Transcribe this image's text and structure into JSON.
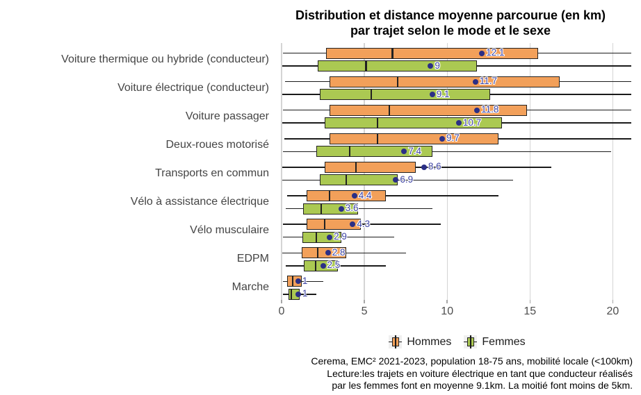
{
  "title": {
    "line1": "Distribution et distance moyenne parcourue (en km)",
    "line2": "par trajet selon le mode et le sexe"
  },
  "legend": {
    "items": [
      {
        "label": "Hommes",
        "color": "#f2a05a"
      },
      {
        "label": "Femmes",
        "color": "#abc952"
      }
    ]
  },
  "caption": {
    "line1": "Cerema, EMC² 2021-2023, population 18-75 ans, mobilité locale (<100km)",
    "line2": "Lecture:les trajets en voiture électrique en tant que conducteur réalisés",
    "line3": "par les femmes font en moyenne 9.1km. La moitié font moins de 5km."
  },
  "colors": {
    "hommes_fill": "#f2a05a",
    "femmes_fill": "#abc952",
    "box_border": "#222222",
    "whisker": "#1a1a1a",
    "mean_dot": "#2b2f86",
    "mean_label": "#3d43a2",
    "gridline": "#d4d4d4",
    "axis_text": "#4d4d4d"
  },
  "chart_data": {
    "type": "boxplot",
    "orientation": "horizontal",
    "title": "Distribution et distance moyenne parcourue (en km) par trajet selon le mode et le sexe",
    "xlabel": "",
    "ylabel": "",
    "xlim": [
      0,
      21.2
    ],
    "x_ticks": [
      0,
      5,
      10,
      15,
      20
    ],
    "x_tick_labels": [
      "0",
      "5",
      "10",
      "15",
      "20"
    ],
    "grid": "vertical-major-only",
    "legend_position": "bottom",
    "categories": [
      "Voiture thermique ou hybride (conducteur)",
      "Voiture électrique (conducteur)",
      "Voiture passager",
      "Deux-roues motorisé",
      "Transports en commun",
      "Vélo à assistance électrique",
      "Vélo musculaire",
      "EDPM",
      "Marche"
    ],
    "series": [
      {
        "name": "Hommes",
        "color": "#f2a05a",
        "stats_keys": [
          "min",
          "q1",
          "median",
          "q3",
          "max",
          "mean"
        ],
        "stats": [
          [
            0.1,
            2.7,
            6.7,
            15.5,
            21.1,
            12.1
          ],
          [
            0.2,
            2.9,
            7.0,
            16.8,
            21.1,
            11.7
          ],
          [
            0.1,
            2.9,
            6.5,
            14.8,
            21.1,
            11.8
          ],
          [
            0.15,
            2.9,
            5.8,
            13.1,
            21.1,
            9.7
          ],
          [
            0.05,
            2.6,
            4.5,
            8.1,
            16.3,
            8.6
          ],
          [
            0.35,
            1.5,
            2.9,
            6.3,
            13.1,
            4.4
          ],
          [
            0.1,
            1.5,
            2.6,
            4.8,
            9.6,
            4.3
          ],
          [
            0.05,
            1.2,
            2.2,
            3.9,
            7.5,
            2.8
          ],
          [
            0.1,
            0.35,
            0.67,
            1.2,
            2.5,
            1.0
          ]
        ],
        "mean_labels": [
          "12.1",
          "11.7",
          "11.8",
          "9.7",
          "8.6",
          "4.4",
          "4.3",
          "2.8",
          "1"
        ]
      },
      {
        "name": "Femmes",
        "color": "#abc952",
        "stats_keys": [
          "min",
          "q1",
          "median",
          "q3",
          "max",
          "mean"
        ],
        "stats": [
          [
            0.05,
            2.2,
            5.1,
            11.8,
            21.1,
            9.0
          ],
          [
            0.05,
            2.3,
            5.4,
            12.6,
            21.1,
            9.1
          ],
          [
            0.05,
            2.6,
            5.8,
            13.3,
            21.1,
            10.7
          ],
          [
            0.1,
            2.1,
            4.1,
            9.1,
            19.9,
            7.4
          ],
          [
            0.05,
            2.3,
            3.9,
            7.0,
            14.0,
            6.9
          ],
          [
            0.25,
            1.3,
            2.4,
            4.6,
            9.1,
            3.6
          ],
          [
            0.1,
            1.25,
            2.1,
            3.6,
            6.8,
            2.9
          ],
          [
            0.25,
            1.35,
            2.05,
            3.4,
            6.3,
            2.5
          ],
          [
            0.1,
            0.4,
            0.6,
            1.1,
            2.1,
            1.0
          ]
        ],
        "mean_labels": [
          "9",
          "9.1",
          "10.7",
          "7.4",
          "6.9",
          "3.6",
          "2.9",
          "2.5",
          "1"
        ]
      }
    ]
  }
}
